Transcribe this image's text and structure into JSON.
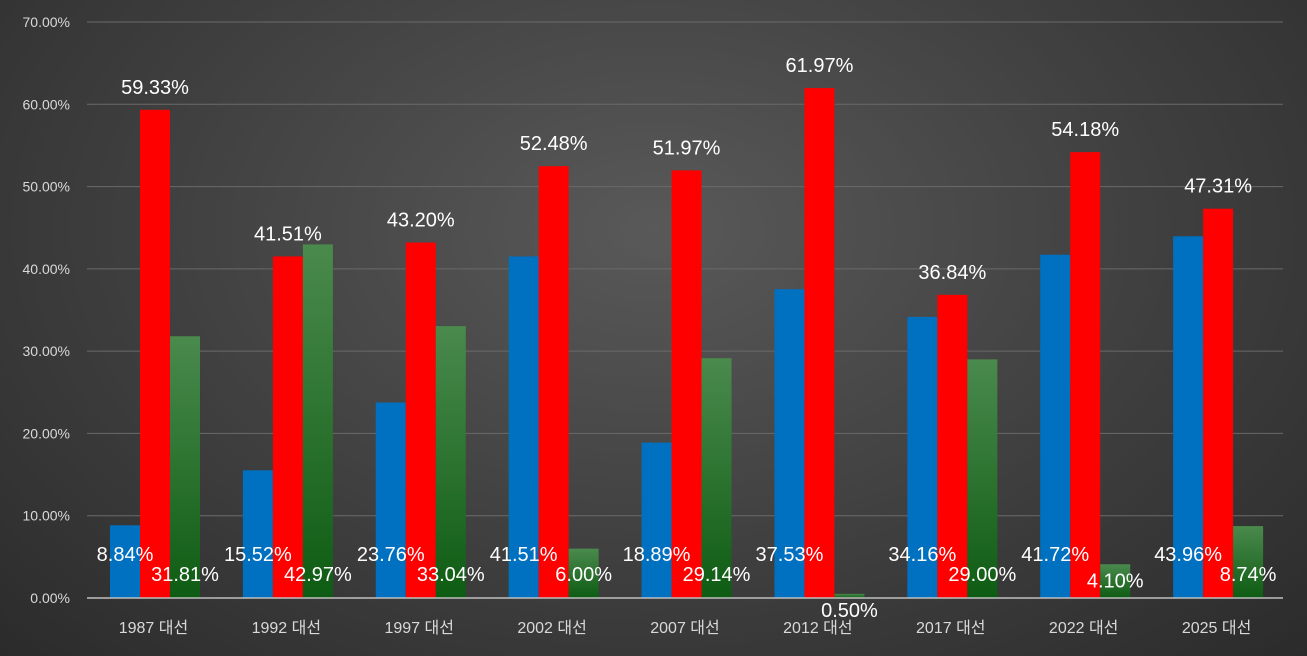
{
  "chart_data": {
    "type": "bar",
    "categories": [
      "1987 대선",
      "1992 대선",
      "1997 대선",
      "2002 대선",
      "2007 대선",
      "2012 대선",
      "2017 대선",
      "2022 대선",
      "2025 대선"
    ],
    "series": [
      {
        "values": [
          8.84,
          15.52,
          23.76,
          41.51,
          18.89,
          37.53,
          34.16,
          41.72,
          43.96
        ],
        "color": "#0070c0"
      },
      {
        "values": [
          59.33,
          41.51,
          43.2,
          52.48,
          51.97,
          61.97,
          36.84,
          54.18,
          47.31
        ],
        "color": "#ff0000"
      },
      {
        "values": [
          31.81,
          42.97,
          33.04,
          6.0,
          29.14,
          0.5,
          29.0,
          4.1,
          8.74
        ],
        "color": "#1a6b1f"
      }
    ],
    "data_labels": [
      [
        "8.84%",
        "15.52%",
        "23.76%",
        "41.51%",
        "18.89%",
        "37.53%",
        "34.16%",
        "41.72%",
        "43.96%"
      ],
      [
        "59.33%",
        "41.51%",
        "43.20%",
        "52.48%",
        "51.97%",
        "61.97%",
        "36.84%",
        "54.18%",
        "47.31%"
      ],
      [
        "31.81%",
        "42.97%",
        "33.04%",
        "6.00%",
        "29.14%",
        "0.50%",
        "29.00%",
        "4.10%",
        "8.74%"
      ]
    ],
    "y_ticks": [
      "0.00%",
      "10.00%",
      "20.00%",
      "30.00%",
      "40.00%",
      "50.00%",
      "60.00%",
      "70.00%"
    ],
    "ylim": [
      0,
      70
    ],
    "grid": true,
    "legend": "none"
  }
}
